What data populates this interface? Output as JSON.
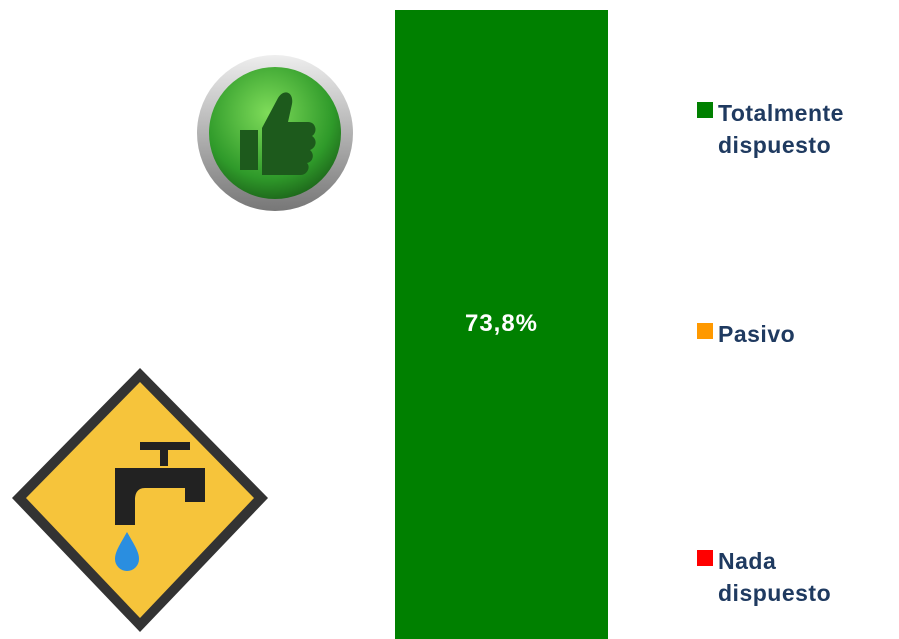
{
  "chart_data": {
    "type": "stacked-bar",
    "categories": [
      null
    ],
    "series": [
      {
        "name": "Totalmente dispuesto",
        "color": "#008000",
        "values": [
          73.8
        ],
        "value_labels": [
          "73,8%"
        ]
      },
      {
        "name": "Pasivo",
        "color": "#ff9900",
        "values": [
          null
        ]
      },
      {
        "name": "Nada dispuesto",
        "color": "#ff0000",
        "values": [
          null
        ]
      }
    ],
    "legend": "right"
  }
}
